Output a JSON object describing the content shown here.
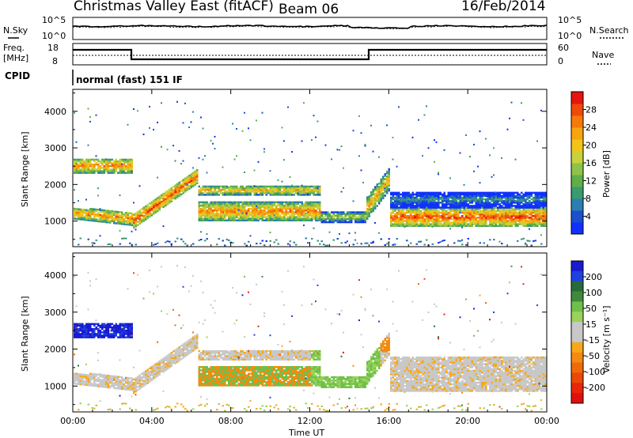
{
  "header": {
    "title": "Christmas Valley East (fitACF)",
    "beam": "Beam 06",
    "date": "16/Feb/2014"
  },
  "noise_panel": {
    "left_label": "N.Sky",
    "right_label": "N.Search",
    "ticks_left": [
      "10^5",
      "10^0"
    ],
    "ticks_right": [
      "10^5",
      "10^0"
    ]
  },
  "freq_panel": {
    "left_label_1": "Freq.",
    "left_label_2": "[MHz]",
    "right_label": "Nave",
    "ticks_left": [
      "18",
      "8"
    ],
    "ticks_right": [
      "60",
      "0"
    ]
  },
  "cpid": {
    "label": "CPID",
    "value": "normal (fast) 151 IF"
  },
  "chart_data": [
    {
      "type": "heatmap",
      "title": "",
      "xlabel": "Time UT",
      "ylabel": "Slant Range [km]",
      "xlim": [
        0,
        24
      ],
      "ylim": [
        300,
        4600
      ],
      "x_ticks": [
        "00:00",
        "04:00",
        "08:00",
        "12:00",
        "16:00",
        "20:00",
        "00:00"
      ],
      "y_ticks": [
        "1000",
        "2000",
        "3000",
        "4000"
      ],
      "colorbar": {
        "label": "Power [dB]",
        "ticks": [
          "4",
          "8",
          "12",
          "16",
          "20",
          "24",
          "28"
        ],
        "colors": [
          "#1030ff",
          "#1a4fd0",
          "#2a7fb0",
          "#3a9a70",
          "#5fae48",
          "#8ec24a",
          "#c7d23c",
          "#f2c418",
          "#f7a40f",
          "#f57a0a",
          "#ef4a0b",
          "#e8140e"
        ]
      }
    },
    {
      "type": "heatmap",
      "title": "",
      "xlabel": "Time UT",
      "ylabel": "Slant Range [km]",
      "xlim": [
        0,
        24
      ],
      "ylim": [
        300,
        4600
      ],
      "x_ticks": [
        "00:00",
        "04:00",
        "08:00",
        "12:00",
        "16:00",
        "20:00",
        "00:00"
      ],
      "y_ticks": [
        "1000",
        "2000",
        "3000",
        "4000"
      ],
      "colorbar": {
        "label": "Velocity [m s⁻¹]",
        "ticks": [
          "200",
          "100",
          "50",
          "15",
          "-15",
          "-50",
          "-100",
          "-200"
        ],
        "colors": [
          "#1a1ad0",
          "#2040e0",
          "#2a6a3a",
          "#3f8a3a",
          "#6fc04a",
          "#9ad25a",
          "#c8c8c8",
          "#c8c8c8",
          "#f7a81a",
          "#f58a10",
          "#f06a0a",
          "#ec4808",
          "#e8260a",
          "#e0100e"
        ]
      }
    }
  ]
}
